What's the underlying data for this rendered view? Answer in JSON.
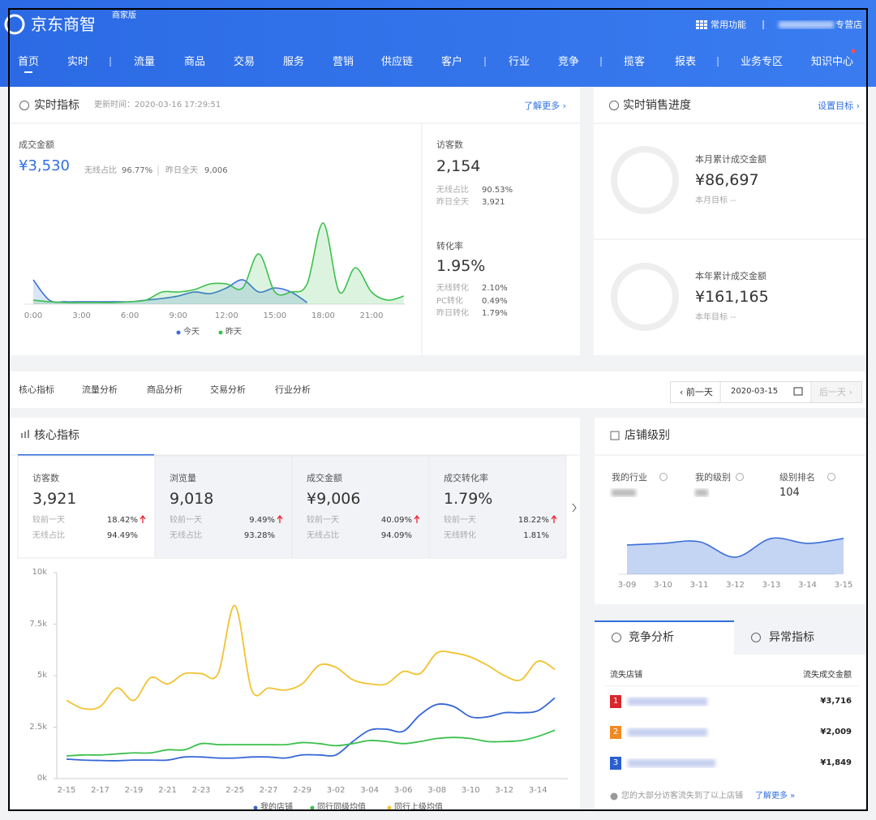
{
  "header": {
    "logo": "京东商智",
    "edition": "商家版",
    "quick": "常用功能",
    "store": "专营店"
  },
  "nav": [
    "首页",
    "实时",
    "流量",
    "商品",
    "交易",
    "服务",
    "营销",
    "供应链",
    "客户",
    "行业",
    "竞争",
    "揽客",
    "报表",
    "业务专区",
    "知识中心"
  ],
  "realtime": {
    "title": "实时指标",
    "updated": "更新时间：2020-03-16 17:29:51",
    "more": "了解更多 ›",
    "sales": {
      "label": "成交金额",
      "value": "¥3,530",
      "wireless_label": "无线占比",
      "wireless": "96.77%",
      "yesterday_label": "昨日全天",
      "yesterday": "9,006"
    },
    "visitors": {
      "label": "访客数",
      "value": "2,154",
      "rows": [
        [
          "无线占比",
          "90.53%"
        ],
        [
          "昨日全天",
          "3,921"
        ]
      ]
    },
    "conversion": {
      "label": "转化率",
      "value": "1.95%",
      "rows": [
        [
          "无线转化",
          "2.10%"
        ],
        [
          "PC转化",
          "0.49%"
        ],
        [
          "昨日转化",
          "1.79%"
        ]
      ]
    }
  },
  "sales_progress": {
    "title": "实时销售进度",
    "set_goal": "设置目标 ›",
    "blocks": [
      {
        "label": "本月累计成交金额",
        "value": "¥86,697",
        "goal": "本月目标 --"
      },
      {
        "label": "本年累计成交金额",
        "value": "¥161,165",
        "goal": "本年目标 --"
      }
    ]
  },
  "tabs": [
    "核心指标",
    "流量分析",
    "商品分析",
    "交易分析",
    "行业分析"
  ],
  "date_nav": {
    "prev": "‹ 前一天",
    "date": "2020-03-15",
    "next": "后一天 ›"
  },
  "core": {
    "title": "核心指标",
    "cards": [
      {
        "label": "访客数",
        "value": "3,921",
        "rows": [
          [
            "较前一天",
            "18.42%"
          ],
          [
            "无线占比",
            "94.49%"
          ]
        ]
      },
      {
        "label": "浏览量",
        "value": "9,018",
        "rows": [
          [
            "较前一天",
            "9.49%"
          ],
          [
            "无线占比",
            "93.28%"
          ]
        ]
      },
      {
        "label": "成交金额",
        "value": "¥9,006",
        "rows": [
          [
            "较前一天",
            "40.09%"
          ],
          [
            "无线占比",
            "94.09%"
          ]
        ]
      },
      {
        "label": "成交转化率",
        "value": "1.79%",
        "rows": [
          [
            "较前一天",
            "18.22%"
          ],
          [
            "无线转化",
            "1.81%"
          ]
        ]
      }
    ]
  },
  "store_level": {
    "title": "店铺级别",
    "labels": [
      "我的行业",
      "我的级别",
      "级别排名"
    ],
    "rank": "104"
  },
  "competition": {
    "tabs": [
      "竞争分析",
      "异常指标"
    ],
    "columns": [
      "流失店铺",
      "流失成交金额"
    ],
    "rows": [
      {
        "rank": "1",
        "amount": "¥3,716",
        "color": "#d9262c"
      },
      {
        "rank": "2",
        "amount": "¥2,009",
        "color": "#f08a24"
      },
      {
        "rank": "3",
        "amount": "¥1,849",
        "color": "#2b5fd0"
      }
    ],
    "footer": "您的大部分访客流失到了以上店铺",
    "footer_link": "了解更多 »"
  },
  "chart_data": [
    {
      "type": "line",
      "categories": [
        "0:00",
        null,
        null,
        "3:00",
        null,
        null,
        "6:00",
        null,
        null,
        "9:00",
        null,
        null,
        "12:00",
        null,
        null,
        "15:00",
        null,
        null,
        "18:00",
        null,
        null,
        "21:00",
        null,
        null
      ],
      "series": [
        {
          "name": "今天",
          "color": "#3a6fd8",
          "values": [
            30,
            5,
            3,
            3,
            3,
            3,
            3,
            5,
            7,
            10,
            15,
            13,
            20,
            30,
            15,
            20,
            15,
            2,
            null,
            null,
            null,
            null,
            null,
            null
          ]
        },
        {
          "name": "昨天",
          "color": "#3cc04d",
          "values": [
            5,
            3,
            2,
            2,
            2,
            2,
            3,
            5,
            15,
            15,
            18,
            25,
            25,
            20,
            62,
            15,
            15,
            25,
            100,
            15,
            45,
            15,
            5,
            10
          ]
        }
      ],
      "ylim": [
        0,
        100
      ]
    },
    {
      "type": "line",
      "categories": [
        "2-15",
        null,
        "2-17",
        null,
        "2-19",
        null,
        "2-21",
        null,
        "2-23",
        null,
        "2-25",
        null,
        "2-27",
        null,
        "2-29",
        null,
        "3-02",
        null,
        "3-04",
        null,
        "3-06",
        null,
        "3-08",
        null,
        "3-10",
        null,
        "3-12",
        null,
        "3-14",
        null
      ],
      "series": [
        {
          "name": "我的店铺",
          "color": "#3567d6",
          "values": [
            950,
            900,
            880,
            870,
            900,
            900,
            900,
            1050,
            1050,
            1000,
            1000,
            1050,
            1050,
            1000,
            1150,
            1150,
            1150,
            1800,
            2350,
            2400,
            2300,
            3100,
            3600,
            3500,
            3000,
            3000,
            3200,
            3200,
            3300,
            3921
          ]
        },
        {
          "name": "同行同级均值",
          "color": "#3cc04d",
          "values": [
            1100,
            1150,
            1150,
            1200,
            1250,
            1250,
            1400,
            1400,
            1700,
            1650,
            1650,
            1650,
            1650,
            1650,
            1750,
            1700,
            1600,
            1700,
            1850,
            1800,
            1700,
            1800,
            1950,
            2000,
            1950,
            1800,
            1800,
            1850,
            2050,
            2350
          ]
        },
        {
          "name": "同行上级均值",
          "color": "#f2c230",
          "values": [
            3800,
            3400,
            3500,
            4400,
            3800,
            4900,
            4600,
            5100,
            5100,
            5100,
            8400,
            4300,
            4400,
            4300,
            4600,
            5500,
            5400,
            4800,
            4600,
            4600,
            5200,
            5100,
            6100,
            6100,
            5900,
            5500,
            5000,
            4800,
            5700,
            5300
          ]
        }
      ],
      "ylim": [
        0,
        10000
      ],
      "yticks": [
        {
          "value": 0,
          "label": "0k"
        },
        {
          "value": 2500,
          "label": "2.5k"
        },
        {
          "value": 5000,
          "label": "5k"
        },
        {
          "value": 7500,
          "label": "7.5k"
        },
        {
          "value": 10000,
          "label": "10k"
        }
      ]
    },
    {
      "type": "area",
      "categories": [
        "3-09",
        "3-10",
        "3-11",
        "3-12",
        "3-13",
        "3-14",
        "3-15"
      ],
      "values": [
        53,
        56,
        59,
        31,
        65,
        56,
        65
      ],
      "color": "#3a6fd8",
      "ylim": [
        0,
        100
      ]
    }
  ]
}
